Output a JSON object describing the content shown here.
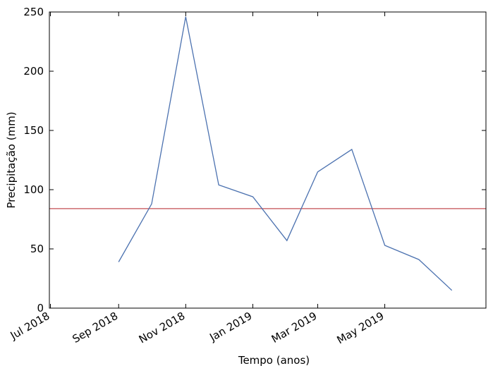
{
  "chart_data": {
    "type": "line",
    "xlabel": "Tempo (anos)",
    "ylabel": "Precipitação (mm)",
    "x_range": [
      "2018-06-30",
      "2019-08-01"
    ],
    "ylim": [
      0,
      250
    ],
    "yticks": [
      0,
      50,
      100,
      150,
      200,
      250
    ],
    "xticks": [
      {
        "date": "2018-07-01",
        "label": "Jul 2018"
      },
      {
        "date": "2018-09-01",
        "label": "Sep 2018"
      },
      {
        "date": "2018-11-01",
        "label": "Nov 2018"
      },
      {
        "date": "2019-01-01",
        "label": "Jan 2019"
      },
      {
        "date": "2019-03-01",
        "label": "Mar 2019"
      },
      {
        "date": "2019-05-01",
        "label": "May 2019"
      }
    ],
    "series": [
      {
        "color": "#4c72b0",
        "points": [
          {
            "x": "2018-09-01",
            "y": 39
          },
          {
            "x": "2018-10-01",
            "y": 88
          },
          {
            "x": "2018-11-01",
            "y": 246
          },
          {
            "x": "2018-12-01",
            "y": 104
          },
          {
            "x": "2019-01-01",
            "y": 94
          },
          {
            "x": "2019-02-01",
            "y": 57
          },
          {
            "x": "2019-03-01",
            "y": 115
          },
          {
            "x": "2019-04-01",
            "y": 134
          },
          {
            "x": "2019-05-01",
            "y": 53
          },
          {
            "x": "2019-06-01",
            "y": 41
          },
          {
            "x": "2019-07-01",
            "y": 15
          }
        ]
      }
    ],
    "reference_lines": [
      {
        "y": 84,
        "color": "#c44e52"
      }
    ],
    "grid": false,
    "legend": "none"
  }
}
